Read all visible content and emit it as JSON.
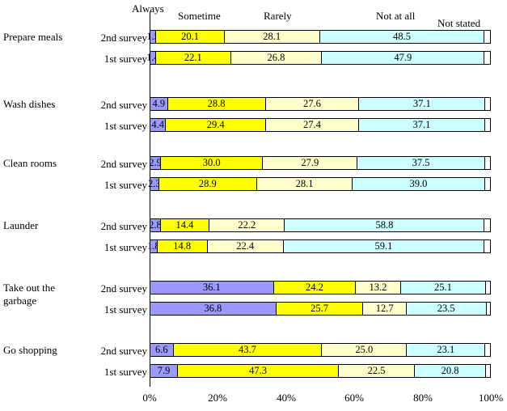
{
  "header_labels": [
    "Always",
    "Sometime",
    "Rarely",
    "Not at all",
    "Not stated"
  ],
  "x_ticks": [
    "0%",
    "20%",
    "40%",
    "60%",
    "80%",
    "100%"
  ],
  "colors": {
    "always": "#9999FF",
    "sometime": "#FFFF00",
    "rarely": "#FFFFCC",
    "not_at_all": "#CCFFFF",
    "not_stated": "#FFFFFF"
  },
  "chart_data": {
    "type": "bar",
    "orientation": "horizontal",
    "stacked": true,
    "unit": "%",
    "x_range": [
      0,
      100
    ],
    "x_tick_labels": [
      "0%",
      "20%",
      "40%",
      "60%",
      "80%",
      "100%"
    ],
    "segments": [
      "Always",
      "Sometime",
      "Rarely",
      "Not at all",
      "Not stated"
    ],
    "segment_labels_shown": [
      "Always",
      "Sometime",
      "Rarely",
      "Not at all"
    ],
    "groups": [
      {
        "category": "Prepare meals",
        "rows": [
          {
            "label": "2nd survey",
            "values": [
              1.5,
              20.1,
              28.1,
              48.5
            ]
          },
          {
            "label": "1st survey",
            "values": [
              1.4,
              22.1,
              26.8,
              47.9
            ]
          }
        ]
      },
      {
        "category": "Wash dishes",
        "rows": [
          {
            "label": "2nd survey",
            "values": [
              4.9,
              28.8,
              27.6,
              37.1
            ]
          },
          {
            "label": "1st survey",
            "values": [
              4.4,
              29.4,
              27.4,
              37.1
            ]
          }
        ]
      },
      {
        "category": "Clean rooms",
        "rows": [
          {
            "label": "2nd survey",
            "values": [
              2.9,
              30.0,
              27.9,
              37.5
            ]
          },
          {
            "label": "1st survey",
            "values": [
              2.3,
              28.9,
              28.1,
              39.0
            ]
          }
        ]
      },
      {
        "category": "Launder",
        "rows": [
          {
            "label": "2nd survey",
            "values": [
              2.8,
              14.4,
              22.2,
              58.8
            ]
          },
          {
            "label": "1st survey",
            "values": [
              1.8,
              14.8,
              22.4,
              59.1
            ]
          }
        ]
      },
      {
        "category": "Take out the garbage",
        "rows": [
          {
            "label": "2nd survey",
            "values": [
              36.1,
              24.2,
              13.2,
              25.1
            ]
          },
          {
            "label": "1st survey",
            "values": [
              36.8,
              25.7,
              12.7,
              23.5
            ]
          }
        ]
      },
      {
        "category": "Go shopping",
        "rows": [
          {
            "label": "2nd survey",
            "values": [
              6.6,
              43.7,
              25.0,
              23.1
            ]
          },
          {
            "label": "1st survey",
            "values": [
              7.9,
              47.3,
              22.5,
              20.8
            ]
          }
        ]
      }
    ]
  }
}
